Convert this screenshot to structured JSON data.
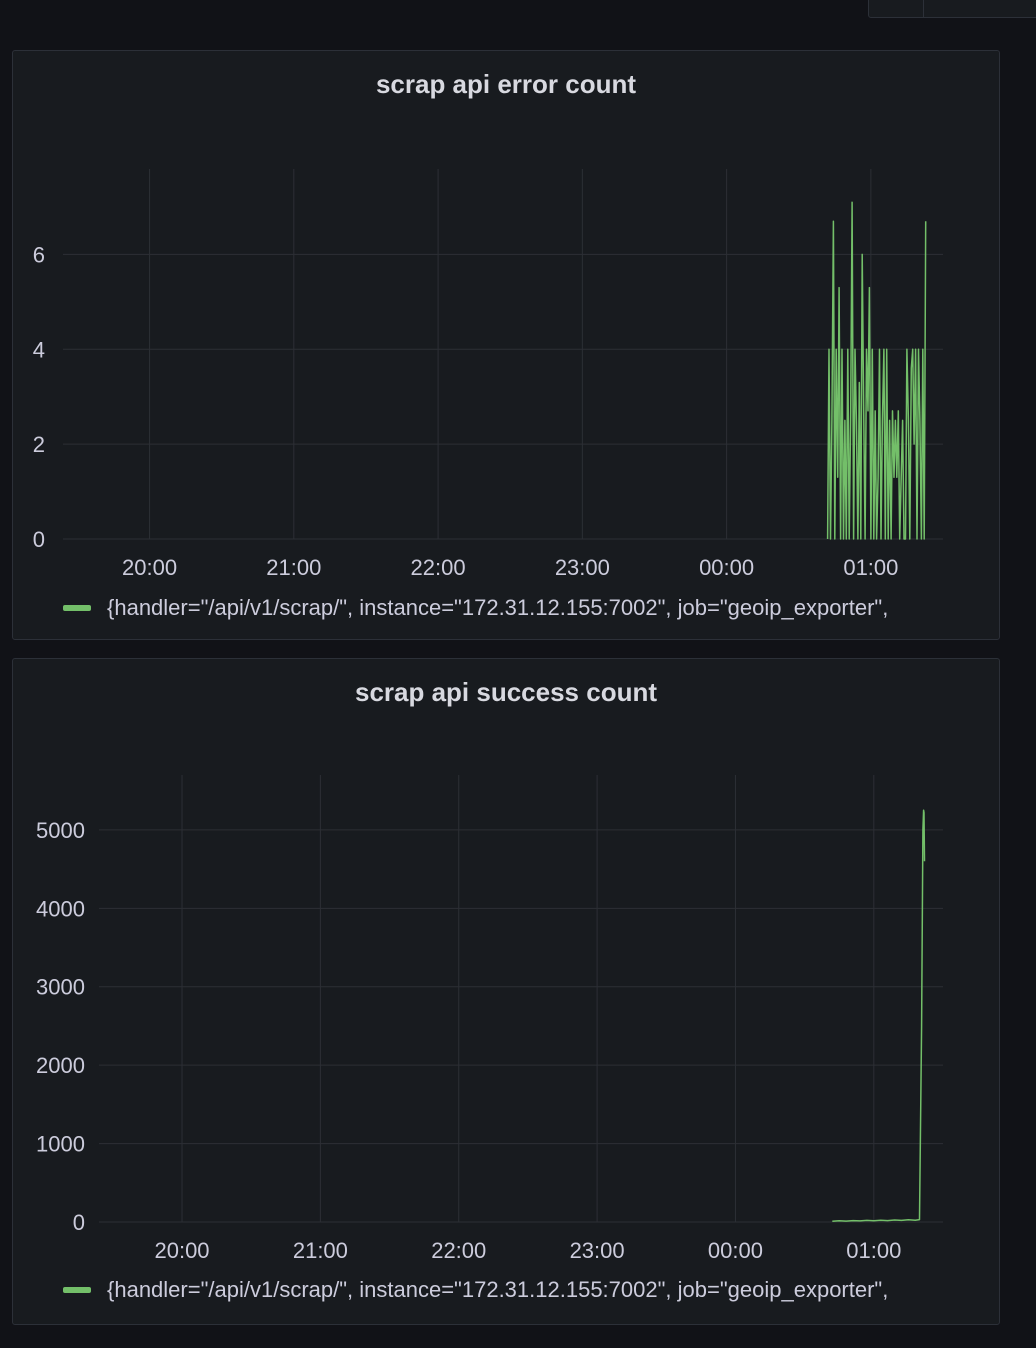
{
  "colors": {
    "series": "#73bf69",
    "grid": "#2c2f35",
    "background": "#181b1f",
    "page": "#111217"
  },
  "chart_data": [
    {
      "type": "line",
      "title": "scrap api error count",
      "x_ticks": [
        "20:00",
        "21:00",
        "22:00",
        "23:00",
        "00:00",
        "01:00"
      ],
      "y_ticks": [
        "0",
        "2",
        "4",
        "6"
      ],
      "ylim": [
        0,
        7.8
      ],
      "xlim_hours": [
        19.4,
        25.5
      ],
      "grid": true,
      "legend_position": "bottom",
      "series": [
        {
          "name": "{handler=\"/api/v1/scrap/\", instance=\"172.31.12.155:7002\", job=\"geoip_exporter\",",
          "x_hours": [
            24.7,
            24.71,
            24.72,
            24.73,
            24.74,
            24.75,
            24.76,
            24.77,
            24.78,
            24.79,
            24.8,
            24.81,
            24.82,
            24.83,
            24.84,
            24.85,
            24.86,
            24.87,
            24.88,
            24.89,
            24.9,
            24.91,
            24.92,
            24.93,
            24.94,
            24.95,
            24.96,
            24.97,
            24.98,
            24.99,
            25.0,
            25.01,
            25.02,
            25.03,
            25.04,
            25.05,
            25.06,
            25.07,
            25.08,
            25.09,
            25.1,
            25.11,
            25.12,
            25.13,
            25.14,
            25.15,
            25.16,
            25.17,
            25.18,
            25.19,
            25.2,
            25.21,
            25.22,
            25.23,
            25.24,
            25.25,
            25.26,
            25.27,
            25.28,
            25.29,
            25.3,
            25.31,
            25.32,
            25.33,
            25.34,
            25.35,
            25.36,
            25.37,
            25.38
          ],
          "values": [
            0,
            4,
            0,
            2.5,
            6.7,
            0,
            4,
            1.3,
            5.3,
            0,
            4,
            0,
            2.5,
            0,
            4,
            0,
            2.7,
            7.1,
            0,
            4,
            2.5,
            0,
            3.3,
            0,
            6,
            2.7,
            0,
            4,
            2.7,
            5.3,
            0,
            4,
            0,
            2.7,
            0,
            1.3,
            4,
            0,
            2.5,
            4,
            0,
            4,
            0,
            2.5,
            0,
            2.7,
            1.3,
            2.5,
            1.3,
            2.7,
            0,
            1.3,
            2.5,
            0,
            0,
            4,
            2.5,
            0,
            3.6,
            4,
            2,
            4,
            0,
            4,
            2.5,
            0,
            4,
            0,
            6.7
          ]
        }
      ]
    },
    {
      "type": "line",
      "title": "scrap api success count",
      "x_ticks": [
        "20:00",
        "21:00",
        "22:00",
        "23:00",
        "00:00",
        "01:00"
      ],
      "y_ticks": [
        "0",
        "1000",
        "2000",
        "3000",
        "4000",
        "5000"
      ],
      "ylim": [
        0,
        5700
      ],
      "xlim_hours": [
        19.4,
        25.5
      ],
      "grid": true,
      "legend_position": "bottom",
      "series": [
        {
          "name": "{handler=\"/api/v1/scrap/\", instance=\"172.31.12.155:7002\", job=\"geoip_exporter\",",
          "x_hours": [
            24.7,
            24.75,
            24.8,
            24.85,
            24.9,
            24.95,
            25.0,
            25.05,
            25.1,
            25.15,
            25.2,
            25.25,
            25.3,
            25.33,
            25.345,
            25.355,
            25.36,
            25.363,
            25.366
          ],
          "values": [
            10,
            15,
            12,
            18,
            14,
            20,
            16,
            22,
            18,
            25,
            20,
            28,
            22,
            30,
            2500,
            5000,
            5250,
            5220,
            4600
          ]
        }
      ]
    }
  ]
}
